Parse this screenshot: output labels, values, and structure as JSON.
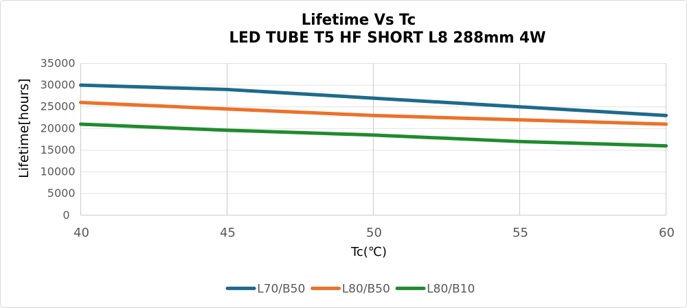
{
  "chart_data": {
    "type": "line",
    "title": "Lifetime Vs Tc",
    "subtitle": "LED TUBE T5 HF SHORT L8 288mm 4W",
    "xlabel": "Tc(℃)",
    "ylabel": "Lifetime[hours]",
    "x": [
      40,
      45,
      50,
      55,
      60
    ],
    "x_ticks": [
      40,
      45,
      50,
      55,
      60
    ],
    "y_ticks": [
      0,
      5000,
      10000,
      15000,
      20000,
      25000,
      30000,
      35000
    ],
    "xlim": [
      40,
      60
    ],
    "ylim": [
      0,
      35000
    ],
    "grid": true,
    "legend_position": "bottom",
    "series": [
      {
        "name": "L70/B50",
        "color": "#1e6a8d",
        "values": [
          30000,
          29000,
          27000,
          25000,
          23000
        ]
      },
      {
        "name": "L80/B50",
        "color": "#ed7128",
        "values": [
          26000,
          24500,
          23000,
          22000,
          21000
        ]
      },
      {
        "name": "L80/B10",
        "color": "#1f8b2e",
        "values": [
          21000,
          19600,
          18500,
          17000,
          16000
        ]
      }
    ]
  },
  "style": {
    "text_color": "#595959",
    "h_grid_color": "#e2e2e2",
    "v_grid_color": "#c9c9c9",
    "axis_line_color": "#c9c9c9",
    "frame_border_color": "#d9d9d9",
    "background": "#ffffff"
  }
}
